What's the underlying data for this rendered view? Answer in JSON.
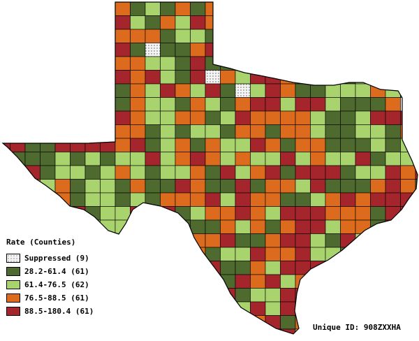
{
  "legend": {
    "title": "Rate (Counties)",
    "items": [
      {
        "label": "Suppressed (9)",
        "color": "#f2f2f2",
        "pattern": "dots"
      },
      {
        "label": "28.2-61.4 (61)",
        "color": "#4e6a2e"
      },
      {
        "label": "61.4-76.5 (62)",
        "color": "#a9d46d"
      },
      {
        "label": "76.5-88.5 (61)",
        "color": "#dd6b1d"
      },
      {
        "label": "88.5-180.4 (61)",
        "color": "#a4262c"
      }
    ]
  },
  "footer": {
    "unique_id": "Unique ID: 908ZXXHA"
  },
  "palette": {
    "suppressed": "#f2f2f2",
    "low": "#4e6a2e",
    "midlow": "#a9d46d",
    "midhigh": "#dd6b1d",
    "high": "#a4262c",
    "outline": "#000000"
  }
}
